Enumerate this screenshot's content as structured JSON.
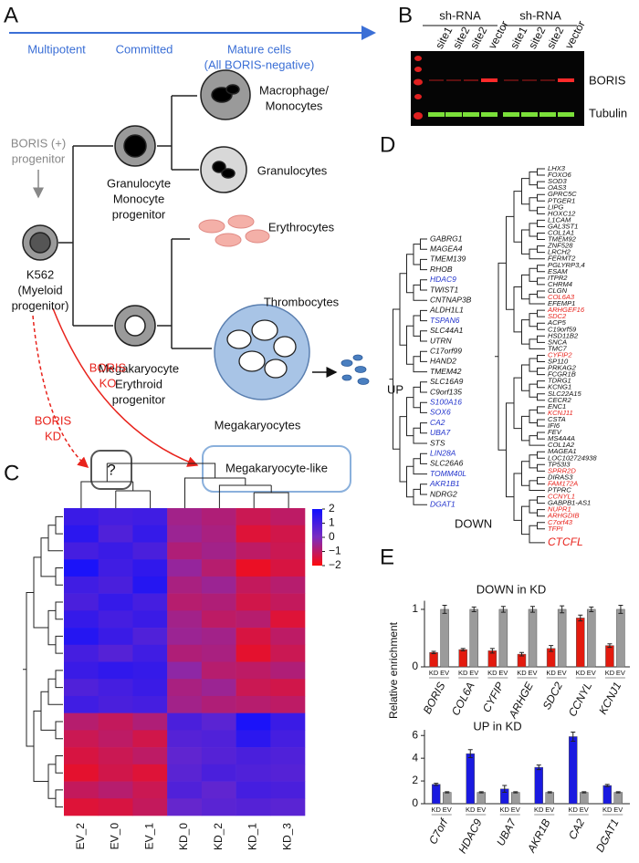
{
  "panel_a": {
    "letter": "A",
    "stages": [
      "Multipotent",
      "Committed",
      "Mature cells",
      "(All BORIS-negative)"
    ],
    "macrophage": [
      "Macrophage/",
      "Monocytes"
    ],
    "granulocytes": "Granulocytes",
    "boris_positive": [
      "BORIS (+)",
      "progenitor"
    ],
    "gmp": [
      "Granulocyte",
      "Monocyte",
      "progenitor"
    ],
    "k562": [
      "K562",
      "(Myeloid",
      "progenitor)"
    ],
    "erythrocytes": "Erythrocytes",
    "thrombocytes": "Thrombocytes",
    "mep": [
      "Megakaryocyte",
      "Erythroid",
      "progenitor"
    ],
    "megakaryocytes": "Megakaryocytes",
    "ko": [
      "BORIS",
      "KO"
    ],
    "kd": [
      "BORIS",
      "KD"
    ],
    "unknown": "?",
    "result": "Megakaryocyte-like"
  },
  "panel_b": {
    "letter": "B",
    "groups": [
      "sh-RNA",
      "sh-RNA"
    ],
    "lanes": [
      "site1",
      "site2",
      "site2",
      "vector",
      "site1",
      "site2",
      "site2",
      "vector"
    ],
    "bands": [
      "BORIS",
      "Tubulin"
    ]
  },
  "panel_c": {
    "letter": "C"
  },
  "panel_d": {
    "letter": "D",
    "up_label": "UP",
    "down_label": "DOWN",
    "up_genes": [
      {
        "name": "GABRG1",
        "color": "#111111"
      },
      {
        "name": "MAGEA4",
        "color": "#111111"
      },
      {
        "name": "TMEM139",
        "color": "#111111"
      },
      {
        "name": "RHOB",
        "color": "#111111"
      },
      {
        "name": "HDAC9",
        "color": "#2233cc"
      },
      {
        "name": "TWIST1",
        "color": "#111111"
      },
      {
        "name": "CNTNAP3B",
        "color": "#111111"
      },
      {
        "name": "ALDH1L1",
        "color": "#111111"
      },
      {
        "name": "TSPAN6",
        "color": "#2233cc"
      },
      {
        "name": "SLC44A1",
        "color": "#111111"
      },
      {
        "name": "UTRN",
        "color": "#111111"
      },
      {
        "name": "C17orf99",
        "color": "#111111"
      },
      {
        "name": "HAND2",
        "color": "#111111"
      },
      {
        "name": "TMEM42",
        "color": "#111111"
      },
      {
        "name": "SLC16A9",
        "color": "#111111"
      },
      {
        "name": "C9orf135",
        "color": "#111111"
      },
      {
        "name": "S100A16",
        "color": "#2233cc"
      },
      {
        "name": "SOX6",
        "color": "#2233cc"
      },
      {
        "name": "CA2",
        "color": "#2233cc"
      },
      {
        "name": "UBA7",
        "color": "#2233cc"
      },
      {
        "name": "STS",
        "color": "#111111"
      },
      {
        "name": "LIN28A",
        "color": "#2233cc"
      },
      {
        "name": "SLC26A6",
        "color": "#111111"
      },
      {
        "name": "TOMM40L",
        "color": "#2233cc"
      },
      {
        "name": "AKR1B1",
        "color": "#2233cc"
      },
      {
        "name": "NDRG2",
        "color": "#111111"
      },
      {
        "name": "DGAT1",
        "color": "#2233cc"
      }
    ],
    "down_genes": [
      {
        "name": "LHX3",
        "color": "#111111"
      },
      {
        "name": "FOXO6",
        "color": "#111111"
      },
      {
        "name": "SOD3",
        "color": "#111111"
      },
      {
        "name": "OAS3",
        "color": "#111111"
      },
      {
        "name": "GPRC5C",
        "color": "#111111"
      },
      {
        "name": "PTGER1",
        "color": "#111111"
      },
      {
        "name": "LIPG",
        "color": "#111111"
      },
      {
        "name": "HOXC12",
        "color": "#111111"
      },
      {
        "name": "L1CAM",
        "color": "#111111"
      },
      {
        "name": "GAL3ST1",
        "color": "#111111"
      },
      {
        "name": "COL1A1",
        "color": "#111111"
      },
      {
        "name": "TMEM92",
        "color": "#111111"
      },
      {
        "name": "ZNF528",
        "color": "#111111"
      },
      {
        "name": "LRCH2",
        "color": "#111111"
      },
      {
        "name": "FERMT2",
        "color": "#111111"
      },
      {
        "name": "PGLYRP3,4",
        "color": "#111111"
      },
      {
        "name": "ESAM",
        "color": "#111111"
      },
      {
        "name": "ITPR2",
        "color": "#111111"
      },
      {
        "name": "CHRM4",
        "color": "#111111"
      },
      {
        "name": "CLGN",
        "color": "#111111"
      },
      {
        "name": "COL6A3",
        "color": "#e8231c"
      },
      {
        "name": "EFEMP1",
        "color": "#111111"
      },
      {
        "name": "ARHGEF16",
        "color": "#e8231c"
      },
      {
        "name": "SDC2",
        "color": "#e8231c"
      },
      {
        "name": "ACP5",
        "color": "#111111"
      },
      {
        "name": "C19orf59",
        "color": "#111111"
      },
      {
        "name": "HSD11B2",
        "color": "#111111"
      },
      {
        "name": "SNCA",
        "color": "#111111"
      },
      {
        "name": "TMC7",
        "color": "#111111"
      },
      {
        "name": "CYFIP2",
        "color": "#e8231c"
      },
      {
        "name": "SP110",
        "color": "#111111"
      },
      {
        "name": "PRKAG2",
        "color": "#111111"
      },
      {
        "name": "FCGR1B",
        "color": "#111111"
      },
      {
        "name": "TDRG1",
        "color": "#111111"
      },
      {
        "name": "KCNG1",
        "color": "#111111"
      },
      {
        "name": "SLC22A15",
        "color": "#111111"
      },
      {
        "name": "CECR2",
        "color": "#111111"
      },
      {
        "name": "ENC1",
        "color": "#111111"
      },
      {
        "name": "KCNJ11",
        "color": "#e8231c"
      },
      {
        "name": "CSTA",
        "color": "#111111"
      },
      {
        "name": "IFI6",
        "color": "#111111"
      },
      {
        "name": "FEV",
        "color": "#111111"
      },
      {
        "name": "MS4A4A",
        "color": "#111111"
      },
      {
        "name": "COL1A2",
        "color": "#111111"
      },
      {
        "name": "MAGEA1",
        "color": "#111111"
      },
      {
        "name": "LOC102724938",
        "color": "#111111"
      },
      {
        "name": "TP53I3",
        "color": "#111111"
      },
      {
        "name": "SPRR2D",
        "color": "#e8231c"
      },
      {
        "name": "DIRAS3",
        "color": "#111111"
      },
      {
        "name": "FAM172A",
        "color": "#e8231c"
      },
      {
        "name": "PTPRC",
        "color": "#111111"
      },
      {
        "name": "CCNYL1",
        "color": "#e8231c"
      },
      {
        "name": "GABPB1-AS1",
        "color": "#111111"
      },
      {
        "name": "NUPR1",
        "color": "#e8231c"
      },
      {
        "name": "ARHGDIB",
        "color": "#e8231c"
      },
      {
        "name": "C7orf43",
        "color": "#e8231c"
      },
      {
        "name": "TFPI",
        "color": "#e8231c"
      },
      {
        "name": "CTCFL",
        "color": "#e8231c"
      }
    ]
  },
  "panel_e": {
    "letter": "E"
  },
  "chart_data": [
    {
      "type": "heatmap",
      "columns": [
        "EV_2",
        "EV_0",
        "EV_1",
        "KD_0",
        "KD_2",
        "KD_1",
        "KD_3"
      ],
      "rows": [
        [
          1.2,
          1.0,
          1.1,
          -0.6,
          -0.8,
          -1.2,
          -1.0
        ],
        [
          1.5,
          0.8,
          1.3,
          -0.5,
          -0.7,
          -1.5,
          -1.3
        ],
        [
          1.0,
          1.2,
          0.9,
          -0.8,
          -0.6,
          -1.0,
          -1.2
        ],
        [
          1.8,
          1.1,
          1.4,
          -0.4,
          -0.9,
          -1.7,
          -1.4
        ],
        [
          1.1,
          0.9,
          1.6,
          -0.7,
          -0.5,
          -1.1,
          -0.9
        ],
        [
          0.9,
          1.3,
          1.0,
          -0.9,
          -0.8,
          -1.3,
          -1.1
        ],
        [
          1.3,
          1.0,
          1.2,
          -0.6,
          -1.0,
          -0.9,
          -1.5
        ],
        [
          1.6,
          1.2,
          0.8,
          -0.5,
          -0.6,
          -1.4,
          -1.0
        ],
        [
          1.0,
          0.7,
          1.1,
          -0.8,
          -0.7,
          -1.6,
          -1.2
        ],
        [
          1.2,
          1.4,
          1.3,
          -0.3,
          -0.9,
          -1.0,
          -0.8
        ],
        [
          0.8,
          1.0,
          1.2,
          -0.7,
          -0.5,
          -1.2,
          -1.3
        ],
        [
          1.1,
          0.9,
          1.0,
          -0.6,
          -0.8,
          -0.9,
          -1.0
        ],
        [
          -0.9,
          -1.1,
          -0.8,
          0.9,
          0.6,
          1.8,
          1.2
        ],
        [
          -1.2,
          -1.0,
          -1.3,
          0.7,
          0.8,
          1.5,
          1.0
        ],
        [
          -1.4,
          -1.2,
          -1.0,
          0.5,
          0.7,
          0.9,
          0.8
        ],
        [
          -1.6,
          -1.3,
          -1.5,
          0.6,
          0.9,
          0.8,
          0.7
        ],
        [
          -1.1,
          -0.9,
          -1.2,
          0.8,
          0.5,
          1.0,
          0.9
        ],
        [
          -1.5,
          -1.4,
          -1.1,
          0.4,
          0.6,
          0.7,
          0.6
        ]
      ],
      "zlim": [
        -2,
        2
      ],
      "zticks": [
        2,
        1,
        0,
        {
          "value": -1,
          "label": "−1"
        },
        {
          "value": -2,
          "label": "−2"
        }
      ],
      "colors": [
        "#ff0a0a",
        "#7a2cc0",
        "#1010ff"
      ]
    },
    {
      "type": "bar",
      "title": "DOWN in KD",
      "categories": [
        "BORIS",
        "COL6A",
        "CYFIP",
        "ARHGE",
        "SDC2",
        "CCNYL",
        "KCNJ1"
      ],
      "series": [
        {
          "name": "KD",
          "color": "#e31a0e",
          "values": [
            0.25,
            0.3,
            0.28,
            0.22,
            0.32,
            0.85,
            0.37
          ],
          "errors": [
            0.02,
            0.02,
            0.04,
            0.03,
            0.05,
            0.05,
            0.03
          ]
        },
        {
          "name": "EV",
          "color": "#9b9b9b",
          "values": [
            1,
            1,
            1,
            1,
            1,
            1,
            1
          ],
          "errors": [
            0.07,
            0.04,
            0.05,
            0.05,
            0.06,
            0.04,
            0.07
          ]
        }
      ],
      "ylim": [
        0,
        1.15
      ],
      "yticks": [
        0,
        1
      ]
    },
    {
      "type": "bar",
      "title": "UP in KD",
      "ylabel": "Relative enrichment",
      "categories": [
        "C7orf",
        "HDAC9",
        "UBA7",
        "AKR1B",
        "CA2",
        "DGAT1"
      ],
      "series": [
        {
          "name": "KD",
          "color": "#1a1ae0",
          "values": [
            1.7,
            4.4,
            1.3,
            3.2,
            5.9,
            1.6
          ],
          "errors": [
            0.1,
            0.35,
            0.3,
            0.2,
            0.4,
            0.1
          ]
        },
        {
          "name": "EV",
          "color": "#9b9b9b",
          "values": [
            1,
            1,
            1,
            1,
            1,
            1
          ],
          "errors": [
            0.05,
            0.05,
            0.05,
            0.05,
            0.05,
            0.05
          ]
        }
      ],
      "ylim": [
        0,
        6.5
      ],
      "yticks": [
        0,
        2,
        4,
        6
      ]
    }
  ]
}
